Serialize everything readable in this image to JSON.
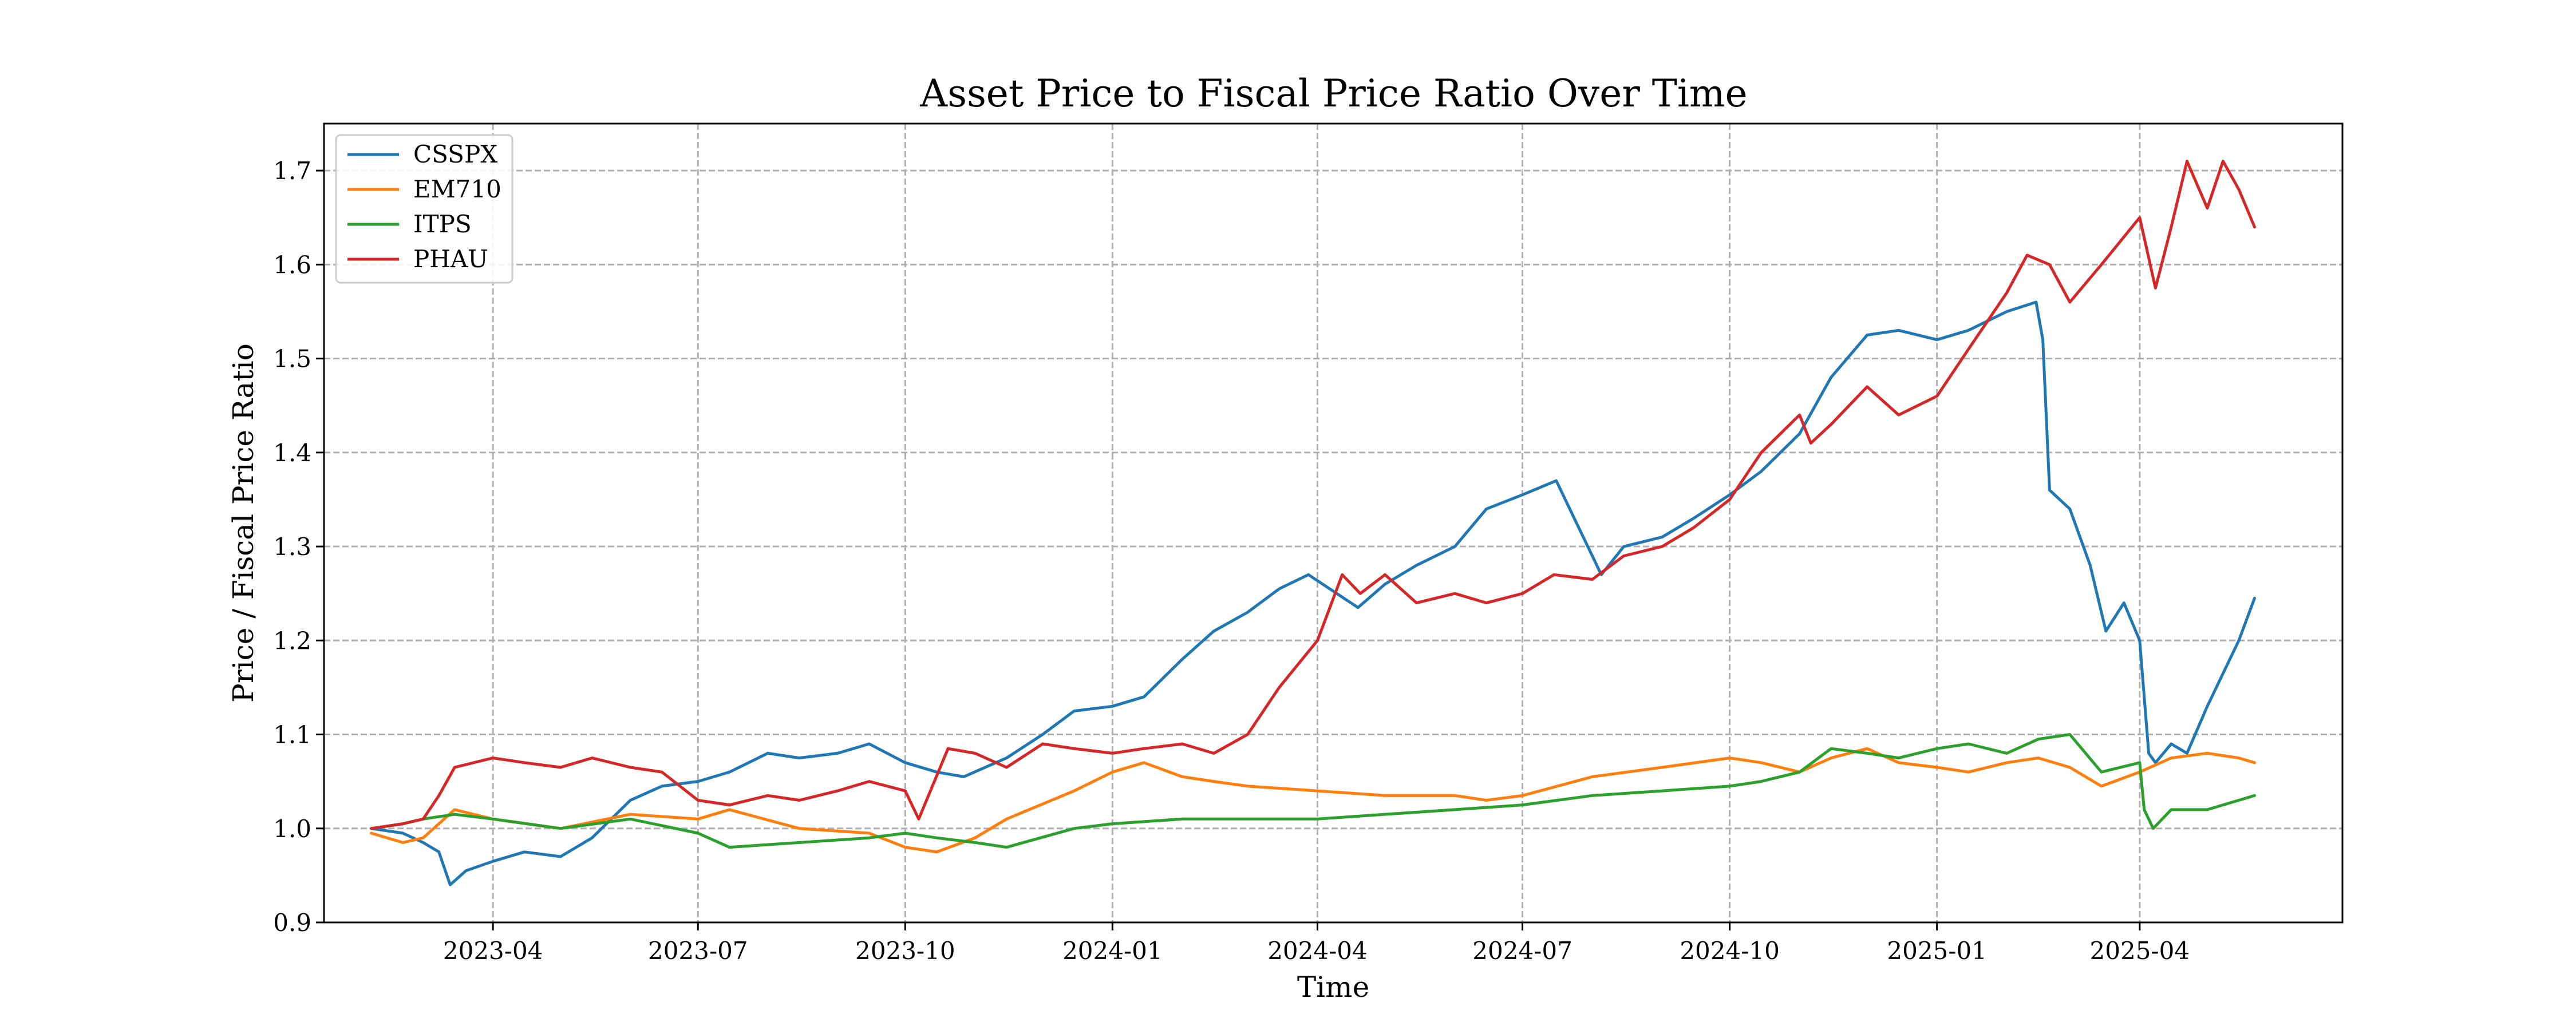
{
  "chart_data": {
    "type": "line",
    "title": "Asset Price to Fiscal Price Ratio Over Time",
    "xlabel": "Time",
    "ylabel": "Price / Fiscal Price Ratio",
    "x_range": [
      "2023-01-16",
      "2025-06-30"
    ],
    "ylim": [
      0.9,
      1.75
    ],
    "x_ticks": [
      {
        "date": "2023-04-01",
        "label": "2023-04"
      },
      {
        "date": "2023-07-01",
        "label": "2023-07"
      },
      {
        "date": "2023-10-01",
        "label": "2023-10"
      },
      {
        "date": "2024-01-01",
        "label": "2024-01"
      },
      {
        "date": "2024-04-01",
        "label": "2024-04"
      },
      {
        "date": "2024-07-01",
        "label": "2024-07"
      },
      {
        "date": "2024-10-01",
        "label": "2024-10"
      },
      {
        "date": "2025-01-01",
        "label": "2025-01"
      },
      {
        "date": "2025-04-01",
        "label": "2025-04"
      }
    ],
    "y_ticks": [
      0.9,
      1.0,
      1.1,
      1.2,
      1.3,
      1.4,
      1.5,
      1.6,
      1.7
    ],
    "y_tick_labels": [
      "0.9",
      "1.0",
      "1.1",
      "1.2",
      "1.3",
      "1.4",
      "1.5",
      "1.6",
      "1.7"
    ],
    "grid": true,
    "legend_position": "top-left",
    "series": [
      {
        "name": "CSSPX",
        "color": "#1f77b4",
        "points": [
          [
            "2023-02-06",
            1.0
          ],
          [
            "2023-02-20",
            0.995
          ],
          [
            "2023-03-01",
            0.985
          ],
          [
            "2023-03-08",
            0.975
          ],
          [
            "2023-03-13",
            0.94
          ],
          [
            "2023-03-20",
            0.955
          ],
          [
            "2023-04-01",
            0.965
          ],
          [
            "2023-04-15",
            0.975
          ],
          [
            "2023-05-01",
            0.97
          ],
          [
            "2023-05-15",
            0.99
          ],
          [
            "2023-06-01",
            1.03
          ],
          [
            "2023-06-15",
            1.045
          ],
          [
            "2023-07-01",
            1.05
          ],
          [
            "2023-07-15",
            1.06
          ],
          [
            "2023-08-01",
            1.08
          ],
          [
            "2023-08-15",
            1.075
          ],
          [
            "2023-09-01",
            1.08
          ],
          [
            "2023-09-15",
            1.09
          ],
          [
            "2023-10-01",
            1.07
          ],
          [
            "2023-10-15",
            1.06
          ],
          [
            "2023-10-27",
            1.055
          ],
          [
            "2023-11-15",
            1.075
          ],
          [
            "2023-12-01",
            1.1
          ],
          [
            "2023-12-15",
            1.125
          ],
          [
            "2024-01-01",
            1.13
          ],
          [
            "2024-01-15",
            1.14
          ],
          [
            "2024-02-01",
            1.18
          ],
          [
            "2024-02-15",
            1.21
          ],
          [
            "2024-03-01",
            1.23
          ],
          [
            "2024-03-15",
            1.255
          ],
          [
            "2024-03-28",
            1.27
          ],
          [
            "2024-04-19",
            1.235
          ],
          [
            "2024-05-01",
            1.26
          ],
          [
            "2024-05-15",
            1.28
          ],
          [
            "2024-06-01",
            1.3
          ],
          [
            "2024-06-15",
            1.34
          ],
          [
            "2024-07-01",
            1.355
          ],
          [
            "2024-07-16",
            1.37
          ],
          [
            "2024-08-05",
            1.27
          ],
          [
            "2024-08-15",
            1.3
          ],
          [
            "2024-09-01",
            1.31
          ],
          [
            "2024-09-15",
            1.33
          ],
          [
            "2024-10-01",
            1.355
          ],
          [
            "2024-10-15",
            1.38
          ],
          [
            "2024-11-01",
            1.42
          ],
          [
            "2024-11-15",
            1.48
          ],
          [
            "2024-12-01",
            1.525
          ],
          [
            "2024-12-15",
            1.53
          ],
          [
            "2025-01-01",
            1.52
          ],
          [
            "2025-01-15",
            1.53
          ],
          [
            "2025-02-01",
            1.55
          ],
          [
            "2025-02-14",
            1.56
          ],
          [
            "2025-02-17",
            1.52
          ],
          [
            "2025-02-20",
            1.36
          ],
          [
            "2025-03-01",
            1.34
          ],
          [
            "2025-03-10",
            1.28
          ],
          [
            "2025-03-17",
            1.21
          ],
          [
            "2025-03-25",
            1.24
          ],
          [
            "2025-04-01",
            1.2
          ],
          [
            "2025-04-05",
            1.08
          ],
          [
            "2025-04-08",
            1.07
          ],
          [
            "2025-04-15",
            1.09
          ],
          [
            "2025-04-22",
            1.08
          ],
          [
            "2025-05-01",
            1.13
          ],
          [
            "2025-05-15",
            1.2
          ],
          [
            "2025-05-22",
            1.245
          ]
        ]
      },
      {
        "name": "EM710",
        "color": "#ff7f0e",
        "points": [
          [
            "2023-02-06",
            0.995
          ],
          [
            "2023-02-20",
            0.985
          ],
          [
            "2023-03-01",
            0.99
          ],
          [
            "2023-03-15",
            1.02
          ],
          [
            "2023-04-01",
            1.01
          ],
          [
            "2023-05-01",
            1.0
          ],
          [
            "2023-06-01",
            1.015
          ],
          [
            "2023-07-01",
            1.01
          ],
          [
            "2023-07-15",
            1.02
          ],
          [
            "2023-08-15",
            1.0
          ],
          [
            "2023-09-15",
            0.995
          ],
          [
            "2023-10-01",
            0.98
          ],
          [
            "2023-10-15",
            0.975
          ],
          [
            "2023-11-01",
            0.99
          ],
          [
            "2023-11-15",
            1.01
          ],
          [
            "2023-12-15",
            1.04
          ],
          [
            "2024-01-01",
            1.06
          ],
          [
            "2024-01-15",
            1.07
          ],
          [
            "2024-02-01",
            1.055
          ],
          [
            "2024-02-15",
            1.05
          ],
          [
            "2024-03-01",
            1.045
          ],
          [
            "2024-04-01",
            1.04
          ],
          [
            "2024-05-01",
            1.035
          ],
          [
            "2024-06-01",
            1.035
          ],
          [
            "2024-06-15",
            1.03
          ],
          [
            "2024-07-01",
            1.035
          ],
          [
            "2024-08-01",
            1.055
          ],
          [
            "2024-09-01",
            1.065
          ],
          [
            "2024-10-01",
            1.075
          ],
          [
            "2024-10-15",
            1.07
          ],
          [
            "2024-11-01",
            1.06
          ],
          [
            "2024-11-15",
            1.075
          ],
          [
            "2024-12-01",
            1.085
          ],
          [
            "2024-12-15",
            1.07
          ],
          [
            "2025-01-01",
            1.065
          ],
          [
            "2025-01-15",
            1.06
          ],
          [
            "2025-02-01",
            1.07
          ],
          [
            "2025-02-15",
            1.075
          ],
          [
            "2025-03-01",
            1.065
          ],
          [
            "2025-03-15",
            1.045
          ],
          [
            "2025-04-01",
            1.06
          ],
          [
            "2025-04-15",
            1.075
          ],
          [
            "2025-05-01",
            1.08
          ],
          [
            "2025-05-15",
            1.075
          ],
          [
            "2025-05-22",
            1.07
          ]
        ]
      },
      {
        "name": "ITPS",
        "color": "#2ca02c",
        "points": [
          [
            "2023-02-06",
            1.0
          ],
          [
            "2023-02-20",
            1.005
          ],
          [
            "2023-03-01",
            1.01
          ],
          [
            "2023-03-15",
            1.015
          ],
          [
            "2023-04-01",
            1.01
          ],
          [
            "2023-05-01",
            1.0
          ],
          [
            "2023-06-01",
            1.01
          ],
          [
            "2023-07-01",
            0.995
          ],
          [
            "2023-07-15",
            0.98
          ],
          [
            "2023-08-15",
            0.985
          ],
          [
            "2023-09-15",
            0.99
          ],
          [
            "2023-10-01",
            0.995
          ],
          [
            "2023-10-15",
            0.99
          ],
          [
            "2023-11-01",
            0.985
          ],
          [
            "2023-11-15",
            0.98
          ],
          [
            "2023-12-15",
            1.0
          ],
          [
            "2024-01-01",
            1.005
          ],
          [
            "2024-02-01",
            1.01
          ],
          [
            "2024-03-01",
            1.01
          ],
          [
            "2024-04-01",
            1.01
          ],
          [
            "2024-05-01",
            1.015
          ],
          [
            "2024-06-01",
            1.02
          ],
          [
            "2024-07-01",
            1.025
          ],
          [
            "2024-08-01",
            1.035
          ],
          [
            "2024-09-01",
            1.04
          ],
          [
            "2024-10-01",
            1.045
          ],
          [
            "2024-10-15",
            1.05
          ],
          [
            "2024-11-01",
            1.06
          ],
          [
            "2024-11-15",
            1.085
          ],
          [
            "2024-12-01",
            1.08
          ],
          [
            "2024-12-15",
            1.075
          ],
          [
            "2025-01-01",
            1.085
          ],
          [
            "2025-01-15",
            1.09
          ],
          [
            "2025-02-01",
            1.08
          ],
          [
            "2025-02-15",
            1.095
          ],
          [
            "2025-03-01",
            1.1
          ],
          [
            "2025-03-15",
            1.06
          ],
          [
            "2025-04-01",
            1.07
          ],
          [
            "2025-04-03",
            1.02
          ],
          [
            "2025-04-07",
            1.0
          ],
          [
            "2025-04-15",
            1.02
          ],
          [
            "2025-05-01",
            1.02
          ],
          [
            "2025-05-15",
            1.03
          ],
          [
            "2025-05-22",
            1.035
          ]
        ]
      },
      {
        "name": "PHAU",
        "color": "#d62728",
        "points": [
          [
            "2023-02-06",
            1.0
          ],
          [
            "2023-02-20",
            1.005
          ],
          [
            "2023-03-01",
            1.01
          ],
          [
            "2023-03-08",
            1.035
          ],
          [
            "2023-03-15",
            1.065
          ],
          [
            "2023-04-01",
            1.075
          ],
          [
            "2023-04-15",
            1.07
          ],
          [
            "2023-05-01",
            1.065
          ],
          [
            "2023-05-15",
            1.075
          ],
          [
            "2023-06-01",
            1.065
          ],
          [
            "2023-06-15",
            1.06
          ],
          [
            "2023-07-01",
            1.03
          ],
          [
            "2023-07-15",
            1.025
          ],
          [
            "2023-08-01",
            1.035
          ],
          [
            "2023-08-15",
            1.03
          ],
          [
            "2023-09-01",
            1.04
          ],
          [
            "2023-09-15",
            1.05
          ],
          [
            "2023-10-01",
            1.04
          ],
          [
            "2023-10-07",
            1.01
          ],
          [
            "2023-10-20",
            1.085
          ],
          [
            "2023-11-01",
            1.08
          ],
          [
            "2023-11-15",
            1.065
          ],
          [
            "2023-12-01",
            1.09
          ],
          [
            "2023-12-15",
            1.085
          ],
          [
            "2024-01-01",
            1.08
          ],
          [
            "2024-01-15",
            1.085
          ],
          [
            "2024-02-01",
            1.09
          ],
          [
            "2024-02-15",
            1.08
          ],
          [
            "2024-03-01",
            1.1
          ],
          [
            "2024-03-15",
            1.15
          ],
          [
            "2024-04-01",
            1.2
          ],
          [
            "2024-04-12",
            1.27
          ],
          [
            "2024-04-20",
            1.25
          ],
          [
            "2024-05-01",
            1.27
          ],
          [
            "2024-05-15",
            1.24
          ],
          [
            "2024-06-01",
            1.25
          ],
          [
            "2024-06-15",
            1.24
          ],
          [
            "2024-07-01",
            1.25
          ],
          [
            "2024-07-15",
            1.27
          ],
          [
            "2024-08-01",
            1.265
          ],
          [
            "2024-08-15",
            1.29
          ],
          [
            "2024-09-01",
            1.3
          ],
          [
            "2024-09-15",
            1.32
          ],
          [
            "2024-10-01",
            1.35
          ],
          [
            "2024-10-15",
            1.4
          ],
          [
            "2024-11-01",
            1.44
          ],
          [
            "2024-11-06",
            1.41
          ],
          [
            "2024-11-15",
            1.43
          ],
          [
            "2024-12-01",
            1.47
          ],
          [
            "2024-12-15",
            1.44
          ],
          [
            "2025-01-01",
            1.46
          ],
          [
            "2025-01-15",
            1.51
          ],
          [
            "2025-02-01",
            1.57
          ],
          [
            "2025-02-10",
            1.61
          ],
          [
            "2025-02-20",
            1.6
          ],
          [
            "2025-03-01",
            1.56
          ],
          [
            "2025-03-15",
            1.6
          ],
          [
            "2025-04-01",
            1.65
          ],
          [
            "2025-04-08",
            1.575
          ],
          [
            "2025-04-15",
            1.64
          ],
          [
            "2025-04-22",
            1.71
          ],
          [
            "2025-05-01",
            1.66
          ],
          [
            "2025-05-08",
            1.71
          ],
          [
            "2025-05-15",
            1.68
          ],
          [
            "2025-05-22",
            1.64
          ]
        ]
      }
    ]
  }
}
